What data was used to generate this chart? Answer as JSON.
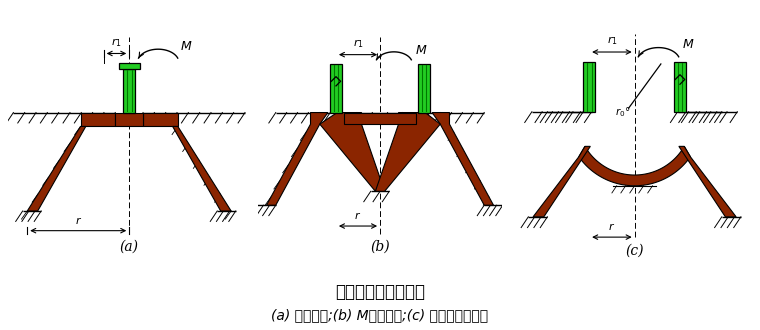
{
  "title": "壳体基础的结构型式",
  "subtitle": "(a) 正圆锥壳;(b) M型组合壳;(c) 内球外锥组合壳",
  "labels_abc": [
    "(a)",
    "(b)",
    "(c)"
  ],
  "brown": "#8B2500",
  "green": "#22CC22",
  "bg": "#ffffff",
  "title_fontsize": 12,
  "subtitle_fontsize": 10,
  "label_fontsize": 10
}
